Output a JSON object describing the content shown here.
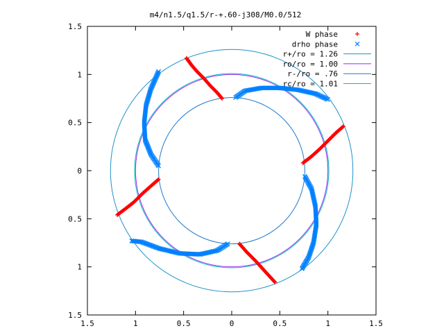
{
  "chart_data": {
    "type": "scatter",
    "title": "m4/n1.5/q1.5/r-+.60-j308/M0.0/512",
    "xlabel": "",
    "ylabel": "",
    "xlim": [
      -1.5,
      1.5
    ],
    "ylim": [
      -1.5,
      1.5
    ],
    "x_ticks": [
      -1.5,
      -1,
      -0.5,
      0,
      0.5,
      1,
      1.5
    ],
    "y_ticks": [
      -1.5,
      -1,
      -0.5,
      0,
      0.5,
      1,
      1.5
    ],
    "x_tick_labels": [
      "1.5",
      "1",
      "0.5",
      "0",
      "0.5",
      "1",
      "1.5"
    ],
    "y_tick_labels": [
      "1.5",
      "1",
      "0.5",
      "0",
      "0.5",
      "1",
      "1.5"
    ],
    "grid": false,
    "legend_position": "top-right",
    "series": [
      {
        "name": "W phase",
        "kind": "points",
        "marker": "plus",
        "color": "#ff0000"
      },
      {
        "name": "drho phase",
        "kind": "points",
        "marker": "cross",
        "color": "#0080ff"
      },
      {
        "name": "r+/ro = 1.26",
        "kind": "circle",
        "radius": 1.26,
        "color": "#1e90c8"
      },
      {
        "name": "ro/ro = 1.00",
        "kind": "circle",
        "radius": 1.0,
        "color": "#a020f0"
      },
      {
        "name": "r-/ro = .76",
        "kind": "circle",
        "radius": 0.76,
        "color": "#1e78c8"
      },
      {
        "name": "rc/ro = 1.01",
        "kind": "circle",
        "radius": 1.01,
        "color": "#00c0c0"
      }
    ],
    "w_phase_arcs": [
      [
        [
          -0.47,
          1.17
        ],
        [
          -0.42,
          1.1
        ],
        [
          -0.36,
          1.03
        ],
        [
          -0.29,
          0.96
        ],
        [
          -0.22,
          0.88
        ],
        [
          -0.15,
          0.81
        ],
        [
          -0.1,
          0.75
        ]
      ],
      [
        [
          0.74,
          0.08
        ],
        [
          0.82,
          0.14
        ],
        [
          0.91,
          0.22
        ],
        [
          1.0,
          0.31
        ],
        [
          1.08,
          0.39
        ],
        [
          1.16,
          0.46
        ]
      ],
      [
        [
          0.08,
          -0.76
        ],
        [
          0.16,
          -0.85
        ],
        [
          0.25,
          -0.94
        ],
        [
          0.34,
          -1.04
        ],
        [
          0.45,
          -1.16
        ]
      ],
      [
        [
          -0.76,
          -0.09
        ],
        [
          -0.84,
          -0.16
        ],
        [
          -0.93,
          -0.24
        ],
        [
          -1.02,
          -0.33
        ],
        [
          -1.11,
          -0.4
        ],
        [
          -1.19,
          -0.46
        ]
      ]
    ],
    "drho_phase_arcs": [
      [
        [
          -0.76,
          0.05
        ],
        [
          -0.84,
          0.17
        ],
        [
          -0.9,
          0.32
        ],
        [
          -0.91,
          0.5
        ],
        [
          -0.89,
          0.68
        ],
        [
          -0.84,
          0.85
        ],
        [
          -0.76,
          1.03
        ]
      ],
      [
        [
          0.04,
          0.76
        ],
        [
          0.14,
          0.83
        ],
        [
          0.31,
          0.86
        ],
        [
          0.5,
          0.86
        ],
        [
          0.69,
          0.84
        ],
        [
          0.87,
          0.8
        ],
        [
          1.0,
          0.74
        ]
      ],
      [
        [
          0.76,
          -0.06
        ],
        [
          0.83,
          -0.19
        ],
        [
          0.87,
          -0.37
        ],
        [
          0.88,
          -0.56
        ],
        [
          0.85,
          -0.75
        ],
        [
          0.8,
          -0.9
        ],
        [
          0.73,
          -1.02
        ]
      ],
      [
        [
          -0.04,
          -0.76
        ],
        [
          -0.15,
          -0.83
        ],
        [
          -0.33,
          -0.87
        ],
        [
          -0.54,
          -0.86
        ],
        [
          -0.75,
          -0.81
        ],
        [
          -0.94,
          -0.74
        ],
        [
          -1.04,
          -0.73
        ]
      ]
    ]
  }
}
